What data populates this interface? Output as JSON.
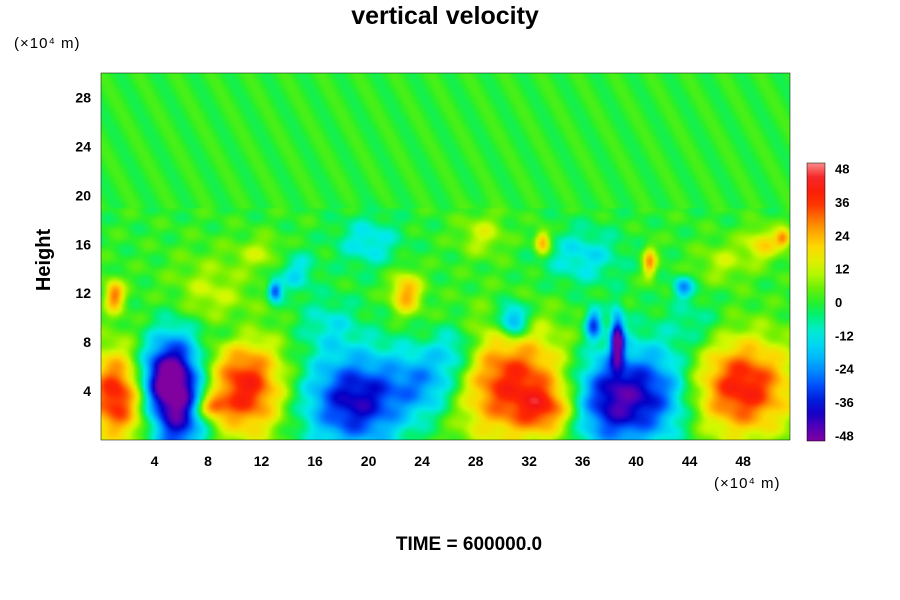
{
  "chart_data": {
    "type": "heatmap",
    "title": "vertical velocity",
    "ylabel": "Height",
    "xlabel": "",
    "x_unit": "(×10⁴ m)",
    "y_unit": "(×10⁴ m)",
    "footer": "TIME = 600000.0",
    "xlim": [
      0,
      51.5
    ],
    "ylim": [
      0,
      30
    ],
    "x_ticks": [
      4,
      8,
      12,
      16,
      20,
      24,
      28,
      32,
      36,
      40,
      44,
      48
    ],
    "y_ticks": [
      4,
      8,
      12,
      16,
      20,
      24,
      28
    ],
    "colorbar": {
      "range": [
        -50,
        50
      ],
      "ticks": [
        48,
        36,
        24,
        12,
        0,
        -12,
        -24,
        -36,
        -48
      ]
    },
    "background_value": 0,
    "features": [
      {
        "x": 1.2,
        "y": 3.6,
        "sx": 1.6,
        "sy": 2.6,
        "value": 40
      },
      {
        "x": 1.0,
        "y": 11.8,
        "sx": 0.5,
        "sy": 0.9,
        "value": 30
      },
      {
        "x": 5.8,
        "y": 3.5,
        "sx": 1.4,
        "sy": 3.8,
        "value": -46
      },
      {
        "x": 4.3,
        "y": 5.0,
        "sx": 1.3,
        "sy": 2.0,
        "value": -30
      },
      {
        "x": 10.8,
        "y": 4.3,
        "sx": 2.0,
        "sy": 2.8,
        "value": 40
      },
      {
        "x": 8.2,
        "y": 2.7,
        "sx": 0.8,
        "sy": 0.6,
        "value": 26
      },
      {
        "x": 19.0,
        "y": 3.2,
        "sx": 2.6,
        "sy": 2.8,
        "value": -40
      },
      {
        "x": 24.5,
        "y": 4.8,
        "sx": 2.0,
        "sy": 2.0,
        "value": -24
      },
      {
        "x": 30.8,
        "y": 4.5,
        "sx": 3.2,
        "sy": 3.2,
        "value": 38
      },
      {
        "x": 33.5,
        "y": 2.5,
        "sx": 1.5,
        "sy": 1.3,
        "value": 20
      },
      {
        "x": 38.3,
        "y": 3.3,
        "sx": 2.4,
        "sy": 2.8,
        "value": -44
      },
      {
        "x": 38.6,
        "y": 8.2,
        "sx": 0.35,
        "sy": 1.5,
        "value": -45
      },
      {
        "x": 36.8,
        "y": 9.5,
        "sx": 0.4,
        "sy": 0.9,
        "value": -30
      },
      {
        "x": 42.0,
        "y": 4.0,
        "sx": 1.8,
        "sy": 2.8,
        "value": -18
      },
      {
        "x": 48.0,
        "y": 4.3,
        "sx": 2.6,
        "sy": 2.8,
        "value": 40
      },
      {
        "x": 30.8,
        "y": 9.8,
        "sx": 0.8,
        "sy": 1.0,
        "value": -30
      },
      {
        "x": 26.5,
        "y": 7.5,
        "sx": 1.2,
        "sy": 1.4,
        "value": -15
      },
      {
        "x": 7.8,
        "y": 11.5,
        "sx": 2.2,
        "sy": 2.4,
        "value": 12
      },
      {
        "x": 13.0,
        "y": 12.2,
        "sx": 0.35,
        "sy": 0.6,
        "value": -32
      },
      {
        "x": 14.5,
        "y": 13.8,
        "sx": 1.0,
        "sy": 1.2,
        "value": -14
      },
      {
        "x": 22.8,
        "y": 12.0,
        "sx": 0.8,
        "sy": 1.2,
        "value": 26
      },
      {
        "x": 20.0,
        "y": 16.2,
        "sx": 1.6,
        "sy": 1.4,
        "value": -14
      },
      {
        "x": 33.0,
        "y": 16.2,
        "sx": 0.4,
        "sy": 0.7,
        "value": 28
      },
      {
        "x": 36.0,
        "y": 15.0,
        "sx": 2.0,
        "sy": 1.6,
        "value": -14
      },
      {
        "x": 41.0,
        "y": 14.5,
        "sx": 0.35,
        "sy": 0.9,
        "value": 26
      },
      {
        "x": 43.5,
        "y": 12.5,
        "sx": 0.5,
        "sy": 0.6,
        "value": -24
      },
      {
        "x": 28.5,
        "y": 16.8,
        "sx": 1.2,
        "sy": 1.2,
        "value": 12
      },
      {
        "x": 49.5,
        "y": 16.0,
        "sx": 1.0,
        "sy": 1.0,
        "value": 18
      },
      {
        "x": 51.0,
        "y": 16.5,
        "sx": 0.4,
        "sy": 0.5,
        "value": 26
      },
      {
        "x": 46.5,
        "y": 14.5,
        "sx": 1.4,
        "sy": 1.2,
        "value": 10
      },
      {
        "x": 12.0,
        "y": 15.2,
        "sx": 1.4,
        "sy": 1.0,
        "value": 10
      },
      {
        "x": 9.5,
        "y": 9.0,
        "sx": 1.5,
        "sy": 1.2,
        "value": -10
      },
      {
        "x": 17.0,
        "y": 9.5,
        "sx": 1.5,
        "sy": 1.5,
        "value": -10
      },
      {
        "x": 44.5,
        "y": 9.5,
        "sx": 1.5,
        "sy": 1.5,
        "value": -8
      }
    ]
  }
}
